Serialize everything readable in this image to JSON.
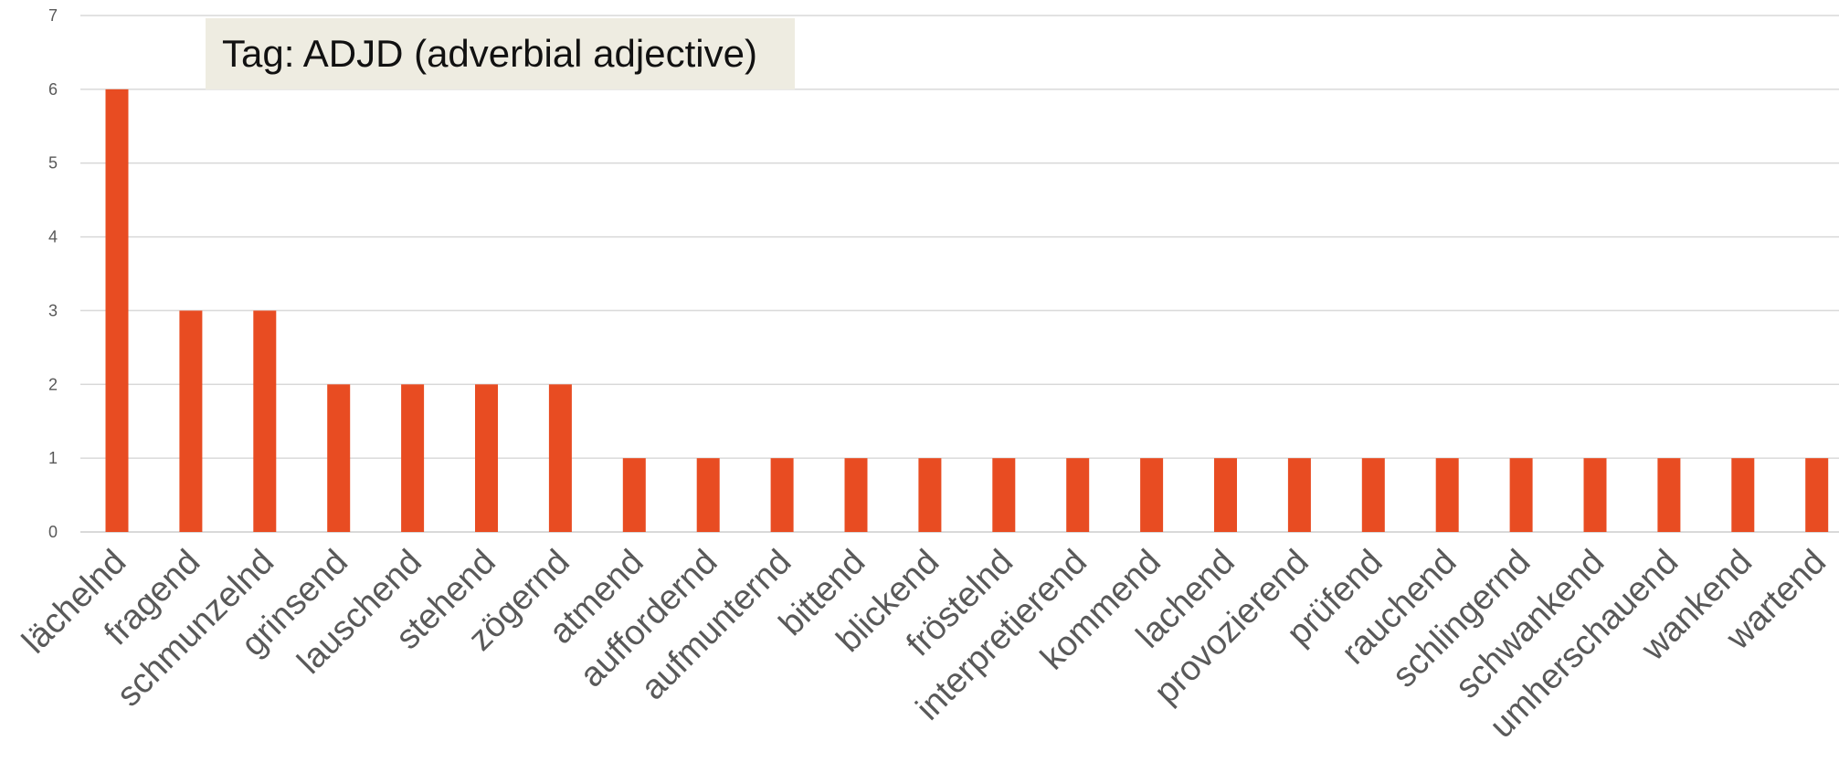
{
  "annotation": "Tag: ADJD (adverbial adjective)",
  "colors": {
    "bar": "#e84c22",
    "grid": "#d9d9d9",
    "annotation_bg": "#eeece1"
  },
  "chart_data": {
    "type": "bar",
    "title": "",
    "xlabel": "",
    "ylabel": "",
    "ylim": [
      0,
      7
    ],
    "yticks": [
      0,
      1,
      2,
      3,
      4,
      5,
      6,
      7
    ],
    "grid": true,
    "categories": [
      "lächelnd",
      "fragend",
      "schmunzelnd",
      "grinsend",
      "lauschend",
      "stehend",
      "zögernd",
      "atmend",
      "auffordernd",
      "aufmunternd",
      "bittend",
      "blickend",
      "fröstelnd",
      "interpretierend",
      "kommend",
      "lachend",
      "provozierend",
      "prüfend",
      "rauchend",
      "schlingernd",
      "schwankend",
      "umherschauend",
      "wankend",
      "wartend"
    ],
    "values": [
      6,
      3,
      3,
      2,
      2,
      2,
      2,
      1,
      1,
      1,
      1,
      1,
      1,
      1,
      1,
      1,
      1,
      1,
      1,
      1,
      1,
      1,
      1,
      1
    ]
  }
}
